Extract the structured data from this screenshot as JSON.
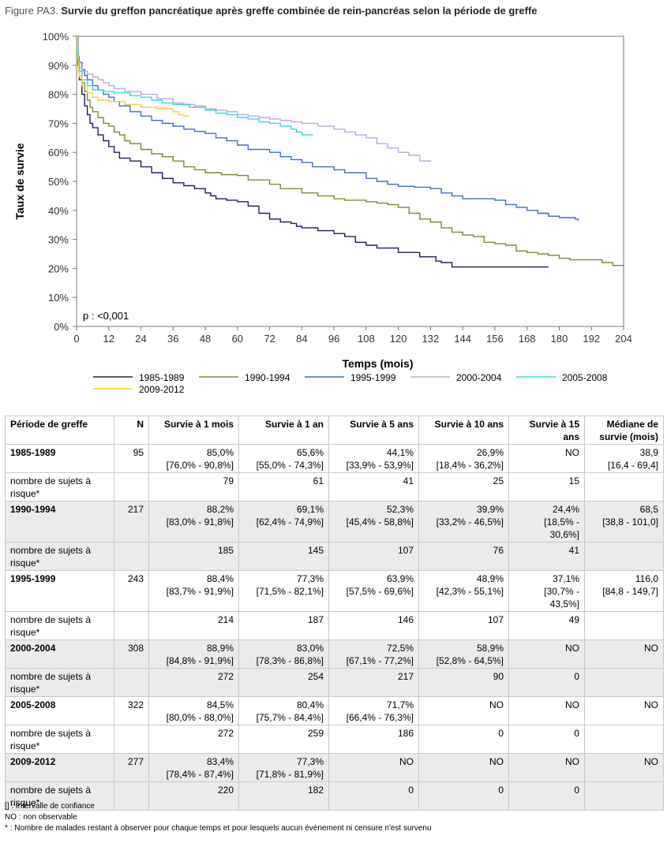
{
  "figure": {
    "label": "Figure PA3.",
    "title": "Survie du greffon pancréatique après greffe combinée de rein-pancréas selon la période de greffe"
  },
  "chart_data": {
    "type": "line",
    "xlabel": "Temps (mois)",
    "ylabel": "Taux de survie",
    "xlim": [
      0,
      204
    ],
    "ylim": [
      0,
      100
    ],
    "x_ticks": [
      0,
      12,
      24,
      36,
      48,
      60,
      72,
      84,
      96,
      108,
      120,
      132,
      144,
      156,
      168,
      180,
      192,
      204
    ],
    "y_ticks": [
      0,
      10,
      20,
      30,
      40,
      50,
      60,
      70,
      80,
      90,
      100
    ],
    "y_tick_labels": [
      "0%",
      "10%",
      "20%",
      "30%",
      "40%",
      "50%",
      "60%",
      "70%",
      "80%",
      "90%",
      "100%"
    ],
    "grid": false,
    "legend_position": "bottom",
    "annotation": "p : <0,001",
    "series": [
      {
        "name": "1985-1989",
        "color": "#1f1f5c",
        "points": [
          [
            0,
            100
          ],
          [
            0.5,
            90
          ],
          [
            1,
            85
          ],
          [
            2,
            80
          ],
          [
            3,
            76
          ],
          [
            4,
            73
          ],
          [
            5,
            70
          ],
          [
            6,
            68.5
          ],
          [
            8,
            66
          ],
          [
            10,
            64
          ],
          [
            12,
            62
          ],
          [
            14,
            60
          ],
          [
            16,
            58
          ],
          [
            20,
            57
          ],
          [
            24,
            55
          ],
          [
            28,
            53
          ],
          [
            32,
            51
          ],
          [
            36,
            49.5
          ],
          [
            40,
            48.5
          ],
          [
            44,
            47.5
          ],
          [
            48,
            46
          ],
          [
            50,
            45
          ],
          [
            52,
            44
          ],
          [
            56,
            43.5
          ],
          [
            60,
            43
          ],
          [
            64,
            41.5
          ],
          [
            68,
            39
          ],
          [
            72,
            37
          ],
          [
            76,
            36
          ],
          [
            80,
            35.5
          ],
          [
            82,
            34.5
          ],
          [
            84,
            34
          ],
          [
            90,
            33
          ],
          [
            96,
            32
          ],
          [
            100,
            31
          ],
          [
            104,
            29
          ],
          [
            108,
            28
          ],
          [
            112,
            27
          ],
          [
            120,
            25.5
          ],
          [
            128,
            24
          ],
          [
            134,
            22.5
          ],
          [
            136,
            22
          ],
          [
            140,
            20.5
          ],
          [
            176,
            20.5
          ]
        ]
      },
      {
        "name": "1990-1994",
        "color": "#7a8c2e",
        "points": [
          [
            0,
            100
          ],
          [
            0.5,
            92
          ],
          [
            1,
            88
          ],
          [
            2,
            84
          ],
          [
            3,
            81
          ],
          [
            4,
            78
          ],
          [
            5,
            75.5
          ],
          [
            6,
            74
          ],
          [
            8,
            72
          ],
          [
            10,
            70
          ],
          [
            12,
            69
          ],
          [
            14,
            67
          ],
          [
            16,
            66
          ],
          [
            18,
            64
          ],
          [
            20,
            63
          ],
          [
            24,
            61
          ],
          [
            28,
            59.5
          ],
          [
            32,
            58.5
          ],
          [
            36,
            57
          ],
          [
            40,
            55
          ],
          [
            44,
            54
          ],
          [
            48,
            53
          ],
          [
            54,
            52.3
          ],
          [
            60,
            52
          ],
          [
            64,
            50.5
          ],
          [
            72,
            49
          ],
          [
            76,
            47.5
          ],
          [
            84,
            46
          ],
          [
            90,
            45
          ],
          [
            96,
            44
          ],
          [
            100,
            43.5
          ],
          [
            108,
            43
          ],
          [
            112,
            42.5
          ],
          [
            116,
            42
          ],
          [
            120,
            41
          ],
          [
            124,
            39
          ],
          [
            128,
            37
          ],
          [
            132,
            36
          ],
          [
            136,
            34
          ],
          [
            140,
            32.5
          ],
          [
            144,
            31.5
          ],
          [
            148,
            31
          ],
          [
            152,
            29
          ],
          [
            156,
            28.5
          ],
          [
            160,
            28
          ],
          [
            164,
            26
          ],
          [
            168,
            25.5
          ],
          [
            172,
            25
          ],
          [
            176,
            24.5
          ],
          [
            180,
            23.5
          ],
          [
            184,
            23
          ],
          [
            190,
            23
          ],
          [
            196,
            22
          ],
          [
            200,
            21
          ],
          [
            204,
            20.8
          ]
        ]
      },
      {
        "name": "1995-1999",
        "color": "#3a6ec7",
        "points": [
          [
            0,
            100
          ],
          [
            0.5,
            93
          ],
          [
            1,
            91
          ],
          [
            2,
            88.5
          ],
          [
            3,
            86.5
          ],
          [
            4,
            85
          ],
          [
            6,
            83
          ],
          [
            8,
            81.5
          ],
          [
            10,
            80
          ],
          [
            12,
            79
          ],
          [
            14,
            77.5
          ],
          [
            16,
            76
          ],
          [
            20,
            74
          ],
          [
            24,
            72.5
          ],
          [
            28,
            71
          ],
          [
            32,
            70
          ],
          [
            36,
            69
          ],
          [
            40,
            68
          ],
          [
            44,
            67.2
          ],
          [
            48,
            66.5
          ],
          [
            52,
            65
          ],
          [
            56,
            64
          ],
          [
            60,
            62.5
          ],
          [
            64,
            61
          ],
          [
            72,
            60
          ],
          [
            76,
            58.5
          ],
          [
            80,
            57.5
          ],
          [
            84,
            56.5
          ],
          [
            88,
            55
          ],
          [
            96,
            54
          ],
          [
            100,
            53
          ],
          [
            108,
            51
          ],
          [
            112,
            50
          ],
          [
            116,
            49
          ],
          [
            120,
            48.3
          ],
          [
            126,
            48
          ],
          [
            132,
            47.5
          ],
          [
            136,
            46
          ],
          [
            140,
            45
          ],
          [
            144,
            44
          ],
          [
            156,
            43.5
          ],
          [
            160,
            42
          ],
          [
            164,
            41
          ],
          [
            168,
            40
          ],
          [
            172,
            39
          ],
          [
            176,
            38
          ],
          [
            180,
            37.5
          ],
          [
            186,
            37
          ],
          [
            187,
            36.5
          ]
        ]
      },
      {
        "name": "2000-2004",
        "color": "#c3a3e0",
        "points": [
          [
            0,
            100
          ],
          [
            0.3,
            94
          ],
          [
            0.7,
            91
          ],
          [
            1,
            89
          ],
          [
            2,
            88
          ],
          [
            4,
            87
          ],
          [
            6,
            86
          ],
          [
            8,
            85
          ],
          [
            10,
            84
          ],
          [
            12,
            83
          ],
          [
            14,
            82
          ],
          [
            18,
            81
          ],
          [
            24,
            80
          ],
          [
            30,
            78.5
          ],
          [
            36,
            77
          ],
          [
            40,
            76.5
          ],
          [
            44,
            76
          ],
          [
            48,
            75
          ],
          [
            52,
            74.5
          ],
          [
            56,
            74
          ],
          [
            60,
            73
          ],
          [
            64,
            72.5
          ],
          [
            68,
            72
          ],
          [
            72,
            71.5
          ],
          [
            76,
            71
          ],
          [
            80,
            70.5
          ],
          [
            84,
            70
          ],
          [
            90,
            69
          ],
          [
            96,
            68
          ],
          [
            100,
            67
          ],
          [
            104,
            66
          ],
          [
            108,
            65
          ],
          [
            112,
            63
          ],
          [
            116,
            61.5
          ],
          [
            120,
            60
          ],
          [
            124,
            59
          ],
          [
            128,
            57
          ],
          [
            132,
            56.8
          ]
        ]
      },
      {
        "name": "2005-2008",
        "color": "#33d8e0",
        "points": [
          [
            0,
            100
          ],
          [
            0.3,
            95
          ],
          [
            0.7,
            90
          ],
          [
            1,
            88
          ],
          [
            2,
            85
          ],
          [
            4,
            83
          ],
          [
            6,
            81.5
          ],
          [
            10,
            81
          ],
          [
            14,
            80.5
          ],
          [
            20,
            79.5
          ],
          [
            24,
            79
          ],
          [
            28,
            78
          ],
          [
            32,
            77
          ],
          [
            36,
            76.5
          ],
          [
            42,
            75.5
          ],
          [
            48,
            74.5
          ],
          [
            52,
            73.5
          ],
          [
            56,
            73
          ],
          [
            60,
            72
          ],
          [
            64,
            71.5
          ],
          [
            68,
            70.5
          ],
          [
            72,
            70
          ],
          [
            76,
            69
          ],
          [
            80,
            68
          ],
          [
            82,
            67
          ],
          [
            84,
            66
          ],
          [
            88,
            65.8
          ]
        ]
      },
      {
        "name": "2009-2012",
        "color": "#f2d23c",
        "points": [
          [
            0,
            100
          ],
          [
            0.3,
            93
          ],
          [
            0.7,
            88
          ],
          [
            1,
            86
          ],
          [
            2,
            83
          ],
          [
            4,
            80.5
          ],
          [
            6,
            79
          ],
          [
            8,
            78
          ],
          [
            12,
            77.5
          ],
          [
            18,
            76.5
          ],
          [
            24,
            75.5
          ],
          [
            30,
            75
          ],
          [
            36,
            74
          ],
          [
            38,
            73
          ],
          [
            40,
            72.5
          ],
          [
            42,
            72.5
          ]
        ]
      }
    ]
  },
  "table": {
    "headers": [
      "Période de greffe",
      "N",
      "Survie à 1 mois",
      "Survie à 1 an",
      "Survie à 5 ans",
      "Survie à 10 ans",
      "Survie à 15 ans",
      "Médiane de survie (mois)"
    ],
    "risk_label": "nombre de sujets à risque*",
    "rows": [
      {
        "period": "1985-1989",
        "n": "95",
        "values": [
          [
            "85,0%",
            "[76,0% - 90,8%]"
          ],
          [
            "65,6%",
            "[55,0% - 74,3%]"
          ],
          [
            "44,1%",
            "[33,9% - 53,9%]"
          ],
          [
            "26,9%",
            "[18,4% - 36,2%]"
          ],
          [
            "NO",
            ""
          ],
          [
            "38,9",
            "[16,4 - 69,4]"
          ]
        ],
        "at_risk": [
          "79",
          "61",
          "41",
          "25",
          "15"
        ]
      },
      {
        "period": "1990-1994",
        "n": "217",
        "values": [
          [
            "88,2%",
            "[83,0% - 91,8%]"
          ],
          [
            "69,1%",
            "[62,4% - 74,9%]"
          ],
          [
            "52,3%",
            "[45,4% - 58,8%]"
          ],
          [
            "39,9%",
            "[33,2% - 46,5%]"
          ],
          [
            "24,4%",
            "[18,5% - 30,6%]"
          ],
          [
            "68,5",
            "[38,8 - 101,0]"
          ]
        ],
        "at_risk": [
          "185",
          "145",
          "107",
          "76",
          "41"
        ]
      },
      {
        "period": "1995-1999",
        "n": "243",
        "values": [
          [
            "88,4%",
            "[83,7% - 91,9%]"
          ],
          [
            "77,3%",
            "[71,5% - 82,1%]"
          ],
          [
            "63,9%",
            "[57,5% - 69,6%]"
          ],
          [
            "48,9%",
            "[42,3% - 55,1%]"
          ],
          [
            "37,1%",
            "[30,7% - 43,5%]"
          ],
          [
            "116,0",
            "[84,8 - 149,7]"
          ]
        ],
        "at_risk": [
          "214",
          "187",
          "146",
          "107",
          "49"
        ]
      },
      {
        "period": "2000-2004",
        "n": "308",
        "values": [
          [
            "88,9%",
            "[84,8% - 91,9%]"
          ],
          [
            "83,0%",
            "[78,3% - 86,8%]"
          ],
          [
            "72,5%",
            "[67,1% - 77,2%]"
          ],
          [
            "58,9%",
            "[52,8% - 64,5%]"
          ],
          [
            "NO",
            ""
          ],
          [
            "NO",
            ""
          ]
        ],
        "at_risk": [
          "272",
          "254",
          "217",
          "90",
          "0"
        ]
      },
      {
        "period": "2005-2008",
        "n": "322",
        "values": [
          [
            "84,5%",
            "[80,0% - 88,0%]"
          ],
          [
            "80,4%",
            "[75,7% - 84,4%]"
          ],
          [
            "71,7%",
            "[66,4% - 76,3%]"
          ],
          [
            "NO",
            ""
          ],
          [
            "NO",
            ""
          ],
          [
            "NO",
            ""
          ]
        ],
        "at_risk": [
          "272",
          "259",
          "186",
          "0",
          "0"
        ]
      },
      {
        "period": "2009-2012",
        "n": "277",
        "values": [
          [
            "83,4%",
            "[78,4% - 87,4%]"
          ],
          [
            "77,3%",
            "[71,8% - 81,9%]"
          ],
          [
            "NO",
            ""
          ],
          [
            "NO",
            ""
          ],
          [
            "NO",
            ""
          ],
          [
            "NO",
            ""
          ]
        ],
        "at_risk": [
          "220",
          "182",
          "0",
          "0",
          "0"
        ]
      }
    ]
  },
  "notes": [
    "[] : Intervalle de confiance",
    "NO : non observable",
    "* : Nombre de malades restant à observer pour chaque temps et pour lesquels aucun évènement ni censure n'est survenu"
  ]
}
